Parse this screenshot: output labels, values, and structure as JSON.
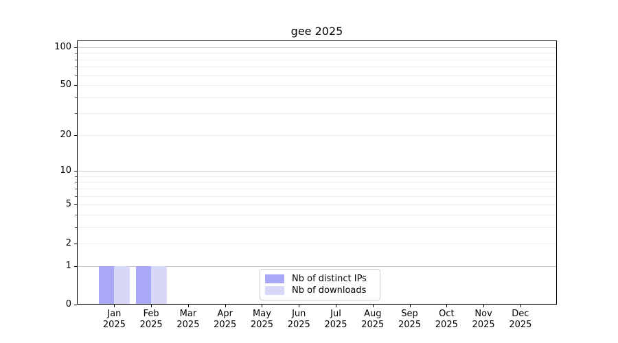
{
  "title": "gee 2025",
  "chart_data": {
    "type": "bar",
    "title": "gee 2025",
    "xlabel": "",
    "ylabel": "",
    "months": [
      "Jan",
      "Feb",
      "Mar",
      "Apr",
      "May",
      "Jun",
      "Jul",
      "Aug",
      "Sep",
      "Oct",
      "Nov",
      "Dec"
    ],
    "year_label": "2025",
    "series": [
      {
        "name": "Nb of distinct IPs",
        "color": "#a8a8f6",
        "values": [
          1,
          1,
          0,
          0,
          0,
          0,
          0,
          0,
          0,
          0,
          0,
          0
        ]
      },
      {
        "name": "Nb of downloads",
        "color": "#d7d7f8",
        "values": [
          1,
          1,
          0,
          0,
          0,
          0,
          0,
          0,
          0,
          0,
          0,
          0
        ]
      }
    ],
    "yscale": "log1p",
    "ylim": [
      0,
      113
    ],
    "y_ticks": [
      0,
      1,
      2,
      5,
      10,
      20,
      50,
      100
    ],
    "y_major_gridlines": [
      1,
      10,
      100
    ],
    "y_minor_gridlines": [
      2,
      3,
      4,
      5,
      6,
      7,
      8,
      9,
      20,
      30,
      40,
      50,
      60,
      70,
      80,
      90
    ],
    "grid": "horizontal",
    "legend_position": "lower center"
  },
  "colors": {
    "background": "#ffffff",
    "bar_distinct_ips": "#a8a8f6",
    "bar_downloads": "#d7d7f8",
    "grid_major": "#c9c9c9",
    "grid_minor": "#ededed",
    "spine": "#000000",
    "text": "#000000",
    "legend_border": "#cccccc"
  }
}
